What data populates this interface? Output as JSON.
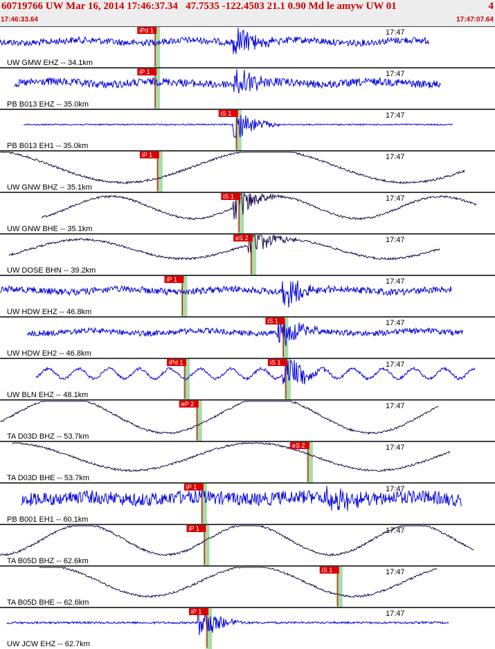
{
  "header": {
    "title": "60719766 UW Mar 16, 2014 17:46:37.34   47.7535 -122.4503 21.1 0.90 Md le amyw UW 01",
    "page_number": "4",
    "start_time": "17:46:33.64",
    "end_time": "17:47:07.64"
  },
  "colors": {
    "trace_blue": "#0000dd",
    "trace_dark": "#1a0a4a",
    "pick_red": "#dd0000",
    "window_green": "#a8dca8",
    "header_bg": "#ededed"
  },
  "minute_label": "17:47",
  "traces": [
    {
      "label": "UW GMW EHZ -- 34.1km",
      "color": "blue",
      "style": "noise",
      "amp": 6,
      "picks": [
        {
          "text": "iPd 1",
          "t": 0.315
        }
      ],
      "burst": 0.49
    },
    {
      "label": "PB B013 EHZ -- 35.0km",
      "color": "blue",
      "style": "noise",
      "amp": 7,
      "picks": [
        {
          "text": "iP 1",
          "t": 0.315
        }
      ],
      "burst": 0.49
    },
    {
      "label": "PB B013 EH1 -- 35.0km",
      "color": "blue",
      "style": "flat",
      "amp": 2,
      "picks": [
        {
          "text": "iS 1",
          "t": 0.48
        }
      ],
      "burst": 0.49
    },
    {
      "label": "UW GNW BHZ -- 35.1km",
      "color": "dark",
      "style": "wave",
      "amp": 24,
      "picks": [
        {
          "text": "iP 1",
          "t": 0.32
        }
      ],
      "burst": -1
    },
    {
      "label": "UW GNW BHE -- 35.1km",
      "color": "dark",
      "style": "wave",
      "amp": 16,
      "picks": [
        {
          "text": "iS 1",
          "t": 0.485
        }
      ],
      "burst": 0.49
    },
    {
      "label": "UW DOSE BHN -- 39.2km",
      "color": "dark",
      "style": "wave",
      "amp": 14,
      "picks": [
        {
          "text": "eS 2",
          "t": 0.51
        }
      ],
      "burst": 0.52
    },
    {
      "label": "UW HDW EHZ -- 46.8km",
      "color": "blue",
      "style": "noise",
      "amp": 6,
      "picks": [
        {
          "text": "iP 1",
          "t": 0.37
        }
      ],
      "burst": 0.59
    },
    {
      "label": "UW HDW EH2 -- 46.8km",
      "color": "blue",
      "style": "noise",
      "amp": 5,
      "picks": [
        {
          "text": "iS 1",
          "t": 0.575
        }
      ],
      "burst": 0.58
    },
    {
      "label": "UW BLN EHZ -- 48.1km",
      "color": "blue",
      "style": "osc",
      "amp": 9,
      "picks": [
        {
          "text": "iPd 1",
          "t": 0.375
        },
        {
          "text": "iS 1",
          "t": 0.58
        }
      ],
      "burst": 0.59
    },
    {
      "label": "TA D03D BHZ -- 53.7km",
      "color": "dark",
      "style": "wave",
      "amp": 26,
      "picks": [
        {
          "text": "eP 2",
          "t": 0.4
        }
      ],
      "burst": -1
    },
    {
      "label": "TA D03D BHE -- 53.7km",
      "color": "dark",
      "style": "wave",
      "amp": 20,
      "picks": [
        {
          "text": "eS 2",
          "t": 0.625
        }
      ],
      "burst": -1
    },
    {
      "label": "PB B001 EH1 -- 60.1km",
      "color": "blue",
      "style": "noise",
      "amp": 12,
      "picks": [
        {
          "text": "iP 1",
          "t": 0.41
        }
      ],
      "burst": 0.68
    },
    {
      "label": "TA B05D BHZ -- 62.6km",
      "color": "dark",
      "style": "wave",
      "amp": 22,
      "picks": [
        {
          "text": "iP 1",
          "t": 0.415
        }
      ],
      "burst": -1
    },
    {
      "label": "TA B05D BHE -- 62.6km",
      "color": "dark",
      "style": "wave",
      "amp": 22,
      "picks": [
        {
          "text": "iS 1",
          "t": 0.685
        }
      ],
      "burst": -1
    },
    {
      "label": "UW JCW EHZ -- 62.7km",
      "color": "blue",
      "style": "flat",
      "amp": 3,
      "picks": [
        {
          "text": "iP 1",
          "t": 0.42
        }
      ],
      "burst": 0.42
    }
  ]
}
